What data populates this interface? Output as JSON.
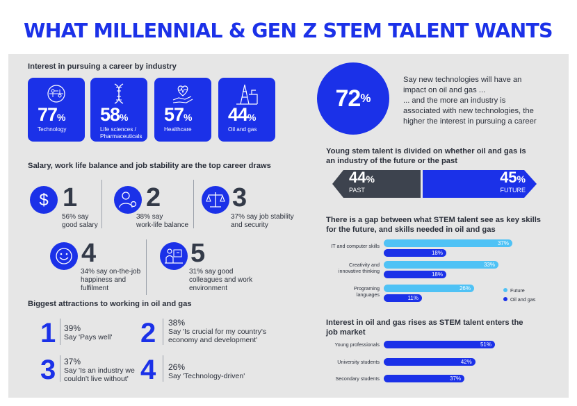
{
  "title": "WHAT MILLENNIAL & GEN Z STEM TALENT WANTS",
  "industry": {
    "heading": "Interest in pursuing a career by industry",
    "tiles": [
      {
        "value": "77",
        "unit": "%",
        "label": "Technology",
        "icon": "circuit-icon"
      },
      {
        "value": "58",
        "unit": "%",
        "label": "Life sciences / Pharmaceuticals",
        "icon": "dna-icon"
      },
      {
        "value": "57",
        "unit": "%",
        "label": "Healthcare",
        "icon": "heart-hand-icon"
      },
      {
        "value": "44",
        "unit": "%",
        "label": "Oil and gas",
        "icon": "oil-rig-icon"
      }
    ]
  },
  "draws": {
    "heading": "Salary, work life balance and job stability are the top career draws",
    "items": [
      {
        "rank": "1",
        "line1": "56% say",
        "line2": "good salary",
        "icon": "dollar-icon"
      },
      {
        "rank": "2",
        "line1": "38% say",
        "line2": "work-life balance",
        "icon": "person-gear-icon"
      },
      {
        "rank": "3",
        "line1": "37% say job stability",
        "line2": "and  security",
        "icon": "scales-icon"
      },
      {
        "rank": "4",
        "line1": "34% say on-the-job",
        "line2": "happiness and",
        "line3": "fulfilment",
        "icon": "smiley-icon"
      },
      {
        "rank": "5",
        "line1": "31% say good",
        "line2": "colleagues and work",
        "line3": "environment",
        "icon": "presentation-icon"
      }
    ]
  },
  "attractions": {
    "heading": "Biggest attractions to working in oil and gas",
    "items": [
      {
        "rank": "1",
        "pct": "39%",
        "line1": "Say 'Pays well'",
        "line2": ""
      },
      {
        "rank": "2",
        "pct": "38%",
        "line1": "Say 'Is crucial for my country's",
        "line2": "economy and development'"
      },
      {
        "rank": "3",
        "pct": "37%",
        "line1": "Say 'Is an industry we",
        "line2": "couldn't live without'"
      },
      {
        "rank": "4",
        "pct": "26%",
        "line1": "Say 'Technology-driven'",
        "line2": ""
      }
    ]
  },
  "tech": {
    "value": "72",
    "unit": "%",
    "line1": "Say new technologies will have an",
    "line2": "impact on oil and gas ...",
    "line3": "... and the more an industry is",
    "line4": "associated with new technologies, the",
    "line5": "higher the interest in pursuing a career"
  },
  "future_past": {
    "heading1": "Young stem talent is divided on whether oil and gas is",
    "heading2": "an industry of the future or the past",
    "past_value": "44",
    "past_unit": "%",
    "past_label": "PAST",
    "future_value": "45",
    "future_unit": "%",
    "future_label": "FUTURE"
  },
  "colors": {
    "brand_blue": "#1b31e8",
    "future_cyan": "#4fc2f5",
    "past_dark": "#3d434e"
  },
  "chart_data": [
    {
      "type": "bar",
      "orientation": "horizontal",
      "title": "There is a gap between what STEM talent see as key skills for the future, and skills needed in oil and gas",
      "title_line1": "There is a gap between what STEM talent see as key skills",
      "title_line2": "for the future, and skills needed in oil and gas",
      "categories": [
        "IT and computer skills",
        "Creativity and innovative thinking",
        "Programing languages"
      ],
      "category_lines": [
        [
          "IT and computer skills"
        ],
        [
          "Creativity and",
          "innovative thinking"
        ],
        [
          "Programing",
          "languages"
        ]
      ],
      "series": [
        {
          "name": "Future",
          "values": [
            37,
            33,
            26
          ],
          "labels": [
            "37%",
            "33%",
            "26%"
          ]
        },
        {
          "name": "Oil and gas",
          "values": [
            18,
            18,
            11
          ],
          "labels": [
            "18%",
            "18%",
            "11%"
          ]
        }
      ],
      "legend": "right"
    },
    {
      "type": "bar",
      "orientation": "horizontal",
      "title": "Interest in oil and gas rises as STEM talent enters the job market",
      "title_line1": "Interest in oil and gas rises as STEM talent enters the",
      "title_line2": "job market",
      "categories": [
        "Young professionals",
        "University students",
        "Secondary students"
      ],
      "values": [
        51,
        42,
        37
      ],
      "labels": [
        "51%",
        "42%",
        "37%"
      ]
    }
  ]
}
